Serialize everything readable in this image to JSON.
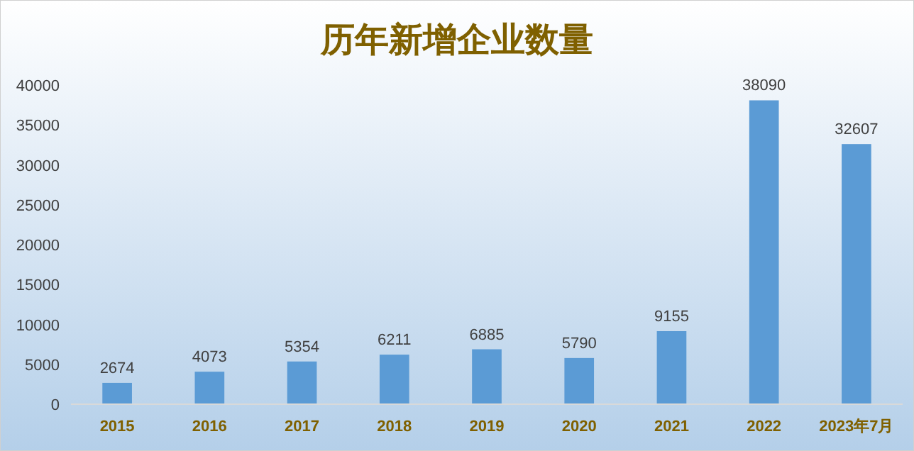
{
  "chart_data": {
    "type": "bar",
    "title": "历年新增企业数量",
    "categories": [
      "2015",
      "2016",
      "2017",
      "2018",
      "2019",
      "2020",
      "2021",
      "2022",
      "2023年7月"
    ],
    "values": [
      2674,
      4073,
      5354,
      6211,
      6885,
      5790,
      9155,
      38090,
      32607
    ],
    "color": "#5b9bd5",
    "ylim": [
      0,
      40000
    ],
    "yticks": [
      0,
      5000,
      10000,
      15000,
      20000,
      25000,
      30000,
      35000,
      40000
    ],
    "data_labels": true
  }
}
